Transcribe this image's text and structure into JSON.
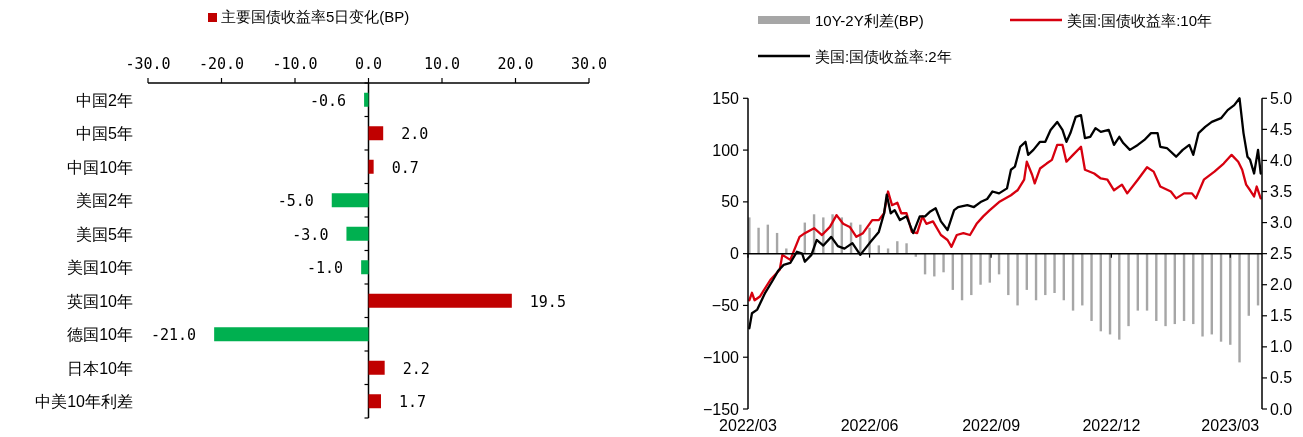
{
  "chart_data": [
    {
      "type": "bar",
      "orientation": "horizontal",
      "legend": "top",
      "categories": [
        "中国2年",
        "中国5年",
        "中国10年",
        "美国2年",
        "美国5年",
        "美国10年",
        "英国10年",
        "德国10年",
        "日本10年",
        "中美10年利差"
      ],
      "series": [
        {
          "name": "主要国债收益率5日变化(BP)",
          "color": "#c00000",
          "colors": [
            "#00b050",
            "#c00000",
            "#c00000",
            "#00b050",
            "#00b050",
            "#00b050",
            "#c00000",
            "#00b050",
            "#c00000",
            "#c00000"
          ],
          "values": [
            -0.6,
            2.0,
            0.7,
            -5.0,
            -3.0,
            -1.0,
            19.5,
            -21.0,
            2.2,
            1.7
          ],
          "value_labels": [
            "-0.6",
            "2.0",
            "0.7",
            "-5.0",
            "-3.0",
            "-1.0",
            "19.5",
            "-21.0",
            "2.2",
            "1.7"
          ]
        }
      ],
      "xlim": [
        -30,
        30
      ],
      "xticks": [
        {
          "value": -30,
          "label": "-30.0"
        },
        {
          "value": -20,
          "label": "-20.0"
        },
        {
          "value": -10,
          "label": "-10.0"
        },
        {
          "value": 0,
          "label": "0.0"
        },
        {
          "value": 10,
          "label": "10.0"
        },
        {
          "value": 20,
          "label": "20.0"
        },
        {
          "value": 30,
          "label": "30.0"
        }
      ]
    },
    {
      "type": "line",
      "legend": "top",
      "series": [
        {
          "name": "10Y-2Y利差(BP)",
          "type": "bar",
          "color": "#a6a6a6",
          "x": [
            "2022-03-02",
            "2022-03-09",
            "2022-03-16",
            "2022-03-23",
            "2022-03-30",
            "2022-04-13",
            "2022-04-20",
            "2022-04-27",
            "2022-05-04",
            "2022-05-11",
            "2022-05-18",
            "2022-05-25",
            "2022-06-01",
            "2022-06-08",
            "2022-06-15",
            "2022-06-22",
            "2022-06-29",
            "2022-07-06",
            "2022-07-13",
            "2022-07-20",
            "2022-07-27",
            "2022-08-03",
            "2022-08-10",
            "2022-08-17",
            "2022-08-24",
            "2022-08-31",
            "2022-09-07",
            "2022-09-14",
            "2022-09-21",
            "2022-09-28",
            "2022-10-05",
            "2022-10-12",
            "2022-10-19",
            "2022-10-26",
            "2022-11-02",
            "2022-11-09",
            "2022-11-16",
            "2022-11-23",
            "2022-11-30",
            "2022-12-07",
            "2022-12-14",
            "2022-12-21",
            "2022-12-28",
            "2023-01-04",
            "2023-01-11",
            "2023-01-18",
            "2023-01-25",
            "2023-02-01",
            "2023-02-08",
            "2023-02-15",
            "2023-02-22",
            "2023-03-01",
            "2023-03-08",
            "2023-03-15",
            "2023-03-22"
          ],
          "values": [
            35,
            25,
            28,
            20,
            5,
            30,
            38,
            35,
            38,
            35,
            30,
            28,
            25,
            8,
            5,
            12,
            10,
            -3,
            -20,
            -22,
            -18,
            -35,
            -45,
            -40,
            -30,
            -28,
            -20,
            -40,
            -50,
            -35,
            -45,
            -40,
            -38,
            -45,
            -55,
            -50,
            -65,
            -75,
            -78,
            -83,
            -70,
            -55,
            -55,
            -65,
            -70,
            -68,
            -65,
            -68,
            -80,
            -78,
            -85,
            -88,
            -105,
            -60,
            -50
          ]
        },
        {
          "name": "美国:国债收益率:10年",
          "color": "#d7000f",
          "axis": "y2",
          "x": [
            "2022-03-02",
            "2022-03-04",
            "2022-03-06",
            "2022-03-10",
            "2022-03-18",
            "2022-03-25",
            "2022-03-27",
            "2022-04-02",
            "2022-04-09",
            "2022-04-13",
            "2022-04-20",
            "2022-04-26",
            "2022-05-02",
            "2022-05-07",
            "2022-05-12",
            "2022-05-17",
            "2022-05-22",
            "2022-05-27",
            "2022-06-03",
            "2022-06-08",
            "2022-06-12",
            "2022-06-15",
            "2022-06-18",
            "2022-06-22",
            "2022-06-25",
            "2022-06-29",
            "2022-07-03",
            "2022-07-07",
            "2022-07-11",
            "2022-07-14",
            "2022-07-19",
            "2022-07-25",
            "2022-07-30",
            "2022-08-02",
            "2022-08-06",
            "2022-08-11",
            "2022-08-16",
            "2022-08-21",
            "2022-08-26",
            "2022-08-31",
            "2022-09-07",
            "2022-09-16",
            "2022-09-21",
            "2022-09-26",
            "2022-09-28",
            "2022-10-02",
            "2022-10-04",
            "2022-10-08",
            "2022-10-13",
            "2022-10-17",
            "2022-10-21",
            "2022-10-25",
            "2022-10-28",
            "2022-11-02",
            "2022-11-08",
            "2022-11-11",
            "2022-11-18",
            "2022-11-23",
            "2022-11-28",
            "2022-12-03",
            "2022-12-09",
            "2022-12-13",
            "2022-12-21",
            "2022-12-28",
            "2023-01-02",
            "2023-01-07",
            "2023-01-15",
            "2023-01-19",
            "2023-01-25",
            "2023-01-31",
            "2023-02-03",
            "2023-02-09",
            "2023-02-17",
            "2023-02-24",
            "2023-03-02",
            "2023-03-07",
            "2023-03-10",
            "2023-03-13",
            "2023-03-16",
            "2023-03-19",
            "2023-03-21",
            "2023-03-24"
          ],
          "values": [
            1.75,
            1.87,
            1.75,
            1.81,
            2.08,
            2.24,
            2.48,
            2.4,
            2.77,
            2.83,
            2.91,
            2.8,
            2.93,
            3.12,
            2.98,
            2.93,
            2.77,
            2.83,
            3.04,
            3.04,
            3.15,
            3.5,
            3.28,
            3.32,
            3.15,
            3.15,
            2.85,
            2.83,
            3.1,
            2.98,
            3.02,
            2.8,
            2.72,
            2.61,
            2.8,
            2.83,
            2.8,
            2.98,
            3.1,
            3.2,
            3.33,
            3.44,
            3.52,
            3.69,
            3.98,
            3.77,
            3.63,
            3.87,
            3.95,
            4.01,
            4.25,
            4.25,
            3.98,
            4.09,
            4.22,
            3.85,
            3.79,
            3.71,
            3.69,
            3.52,
            3.61,
            3.47,
            3.69,
            3.89,
            3.82,
            3.58,
            3.5,
            3.39,
            3.47,
            3.47,
            3.39,
            3.69,
            3.82,
            3.95,
            4.09,
            3.98,
            3.85,
            3.61,
            3.52,
            3.42,
            3.58,
            3.39
          ]
        },
        {
          "name": "美国:国债收益率:2年",
          "color": "#000000",
          "axis": "y2",
          "x": [
            "2022-03-02",
            "2022-03-04",
            "2022-03-08",
            "2022-03-14",
            "2022-03-20",
            "2022-03-24",
            "2022-03-28",
            "2022-04-02",
            "2022-04-07",
            "2022-04-11",
            "2022-04-13",
            "2022-04-18",
            "2022-04-22",
            "2022-04-27",
            "2022-05-03",
            "2022-05-08",
            "2022-05-13",
            "2022-05-19",
            "2022-05-25",
            "2022-06-01",
            "2022-06-08",
            "2022-06-12",
            "2022-06-14",
            "2022-06-17",
            "2022-06-20",
            "2022-06-24",
            "2022-06-29",
            "2022-07-04",
            "2022-07-09",
            "2022-07-13",
            "2022-07-17",
            "2022-07-21",
            "2022-07-25",
            "2022-07-30",
            "2022-08-04",
            "2022-08-07",
            "2022-08-14",
            "2022-08-19",
            "2022-08-24",
            "2022-08-29",
            "2022-09-02",
            "2022-09-07",
            "2022-09-13",
            "2022-09-16",
            "2022-09-19",
            "2022-09-23",
            "2022-09-27",
            "2022-09-29",
            "2022-10-03",
            "2022-10-08",
            "2022-10-12",
            "2022-10-16",
            "2022-10-21",
            "2022-10-25",
            "2022-10-28",
            "2022-10-31",
            "2022-11-04",
            "2022-11-08",
            "2022-11-11",
            "2022-11-15",
            "2022-11-19",
            "2022-11-23",
            "2022-11-29",
            "2022-12-03",
            "2022-12-07",
            "2022-12-10",
            "2022-12-15",
            "2022-12-21",
            "2022-12-26",
            "2022-12-31",
            "2023-01-05",
            "2023-01-07",
            "2023-01-12",
            "2023-01-19",
            "2023-01-24",
            "2023-01-29",
            "2023-02-01",
            "2023-02-05",
            "2023-02-10",
            "2023-02-15",
            "2023-02-22",
            "2023-02-27",
            "2023-03-04",
            "2023-03-08",
            "2023-03-11",
            "2023-03-14",
            "2023-03-16",
            "2023-03-19",
            "2023-03-22",
            "2023-03-24"
          ],
          "values": [
            1.3,
            1.54,
            1.6,
            1.87,
            2.08,
            2.23,
            2.32,
            2.35,
            2.53,
            2.5,
            2.37,
            2.48,
            2.72,
            2.63,
            2.77,
            2.62,
            2.58,
            2.67,
            2.48,
            2.67,
            2.85,
            3.15,
            3.45,
            3.15,
            3.2,
            3.04,
            3.1,
            2.83,
            3.1,
            3.1,
            3.18,
            3.23,
            3.02,
            2.88,
            3.2,
            3.25,
            3.28,
            3.25,
            3.33,
            3.38,
            3.5,
            3.47,
            3.55,
            3.85,
            3.9,
            4.22,
            4.3,
            4.09,
            4.17,
            4.3,
            4.3,
            4.49,
            4.62,
            4.49,
            4.3,
            4.44,
            4.7,
            4.73,
            4.36,
            4.38,
            4.52,
            4.46,
            4.49,
            4.25,
            4.38,
            4.28,
            4.17,
            4.25,
            4.33,
            4.44,
            4.44,
            4.22,
            4.2,
            4.06,
            4.17,
            4.25,
            4.09,
            4.44,
            4.54,
            4.62,
            4.68,
            4.81,
            4.89,
            5.0,
            4.44,
            4.06,
            4.01,
            3.79,
            4.17,
            3.79
          ]
        }
      ],
      "xlim": [
        "2022-03-01",
        "2023-03-25"
      ],
      "xticks": [
        {
          "value": "2022-03-01",
          "label": "2022/03"
        },
        {
          "value": "2022-06-01",
          "label": "2022/06"
        },
        {
          "value": "2022-09-01",
          "label": "2022/09"
        },
        {
          "value": "2022-12-01",
          "label": "2022/12"
        },
        {
          "value": "2023-03-01",
          "label": "2023/03"
        }
      ],
      "ylim": [
        -150,
        150
      ],
      "yticks": [
        -150,
        -100,
        -50,
        0,
        50,
        100,
        150
      ],
      "y2lim": [
        0,
        5
      ],
      "y2ticks": [
        {
          "value": 0,
          "label": "0.0"
        },
        {
          "value": 0.5,
          "label": "0.5"
        },
        {
          "value": 1,
          "label": "1.0"
        },
        {
          "value": 1.5,
          "label": "1.5"
        },
        {
          "value": 2,
          "label": "2.0"
        },
        {
          "value": 2.5,
          "label": "2.5"
        },
        {
          "value": 3,
          "label": "3.0"
        },
        {
          "value": 3.5,
          "label": "3.5"
        },
        {
          "value": 4,
          "label": "4.0"
        },
        {
          "value": 4.5,
          "label": "4.5"
        },
        {
          "value": 5,
          "label": "5.0"
        }
      ]
    }
  ]
}
